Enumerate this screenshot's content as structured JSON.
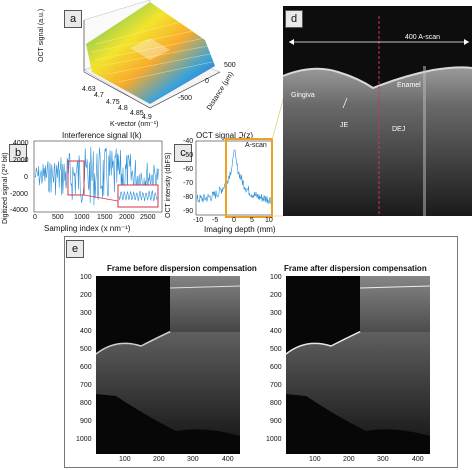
{
  "panel_a": {
    "label": "a",
    "zlabel": "OCT signal (a.u.)",
    "xlabel": "K-vector (nm⁻¹)",
    "ylabel": "Distance (μm)",
    "xticks": [
      "4.63",
      "4.7",
      "4.75",
      "4.8",
      "4.85",
      "4.9"
    ],
    "yticks": [
      "-500",
      "0",
      "500"
    ]
  },
  "panel_b": {
    "label": "b",
    "title": "Interference signal I(k)",
    "xlabel": "Sampling index (x nm⁻¹)",
    "ylabel": "Digitized signal (2¹² bit)",
    "yticks": [
      "4000",
      "2000",
      "0",
      "-2000",
      "-4000"
    ],
    "xticks": [
      "0",
      "500",
      "1000",
      "1500",
      "2000",
      "2500"
    ],
    "line_color": "#2a8fd6",
    "highlight_color": "#d6334a"
  },
  "panel_c": {
    "label": "c",
    "title": "OCT signal ℑ(z)",
    "xlabel": "Imaging depth (mm)",
    "ylabel": "OCT intensity (dbFS)",
    "yticks": [
      "-40",
      "-50",
      "-60",
      "-70",
      "-80",
      "-90"
    ],
    "xticks": [
      "-10",
      "-5",
      "0",
      "5",
      "10"
    ],
    "ascan_label": "A-scan",
    "box_color": "#f0a020"
  },
  "panel_d": {
    "label": "d",
    "scan_label": "400 A-scan",
    "labels": [
      "Gingiva",
      "Enamel",
      "JE",
      "DEJ"
    ]
  },
  "panel_e": {
    "label": "e",
    "title_left": "Frame before dispersion compensation",
    "title_right": "Frame after dispersion compensation",
    "yticks": [
      "100",
      "200",
      "300",
      "400",
      "500",
      "600",
      "700",
      "800",
      "900",
      "1000"
    ],
    "xticks": [
      "100",
      "200",
      "300",
      "400"
    ]
  }
}
